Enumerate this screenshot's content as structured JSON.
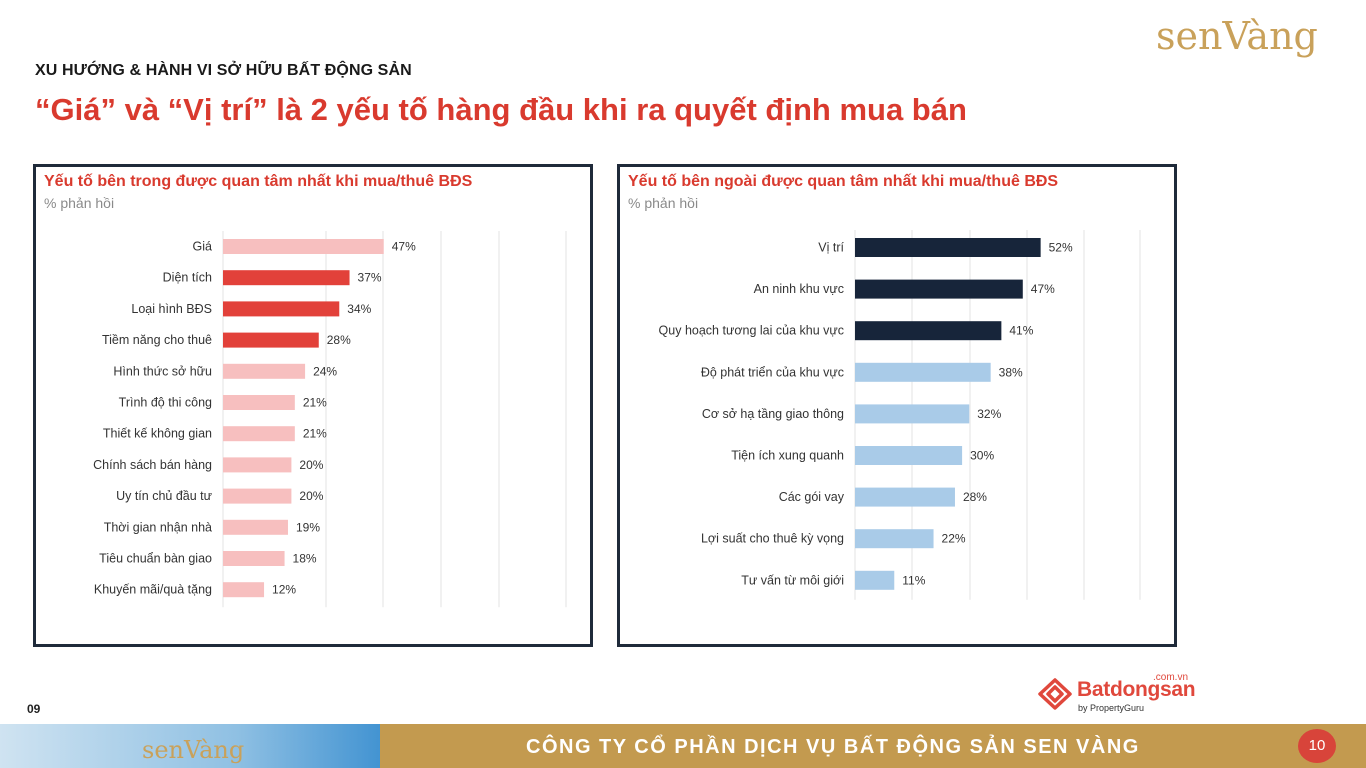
{
  "brand": {
    "logo_text": "senVàng",
    "partner_name": "Batdongsan",
    "partner_domain": ".com.vn",
    "partner_tagline": "by PropertyGuru"
  },
  "header": {
    "eyebrow": "XU HƯỚNG & HÀNH VI SỞ HỮU BẤT ĐỘNG SẢN",
    "headline": "“Giá” và “Vị trí” là 2 yếu tố hàng đầu khi ra quyết định mua bán"
  },
  "footer": {
    "slide_number_left": "09",
    "company": "CÔNG TY CỔ PHẦN DỊCH VỤ BẤT ĐỘNG SẢN SEN VÀNG",
    "page_number": "10"
  },
  "colors": {
    "accent_red": "#d93a2e",
    "bar_red": "#e2413a",
    "bar_pink": "#f7bfbf",
    "bar_navy": "#17253a",
    "bar_lightblue": "#a9cbe8",
    "gold": "#c39a4f"
  },
  "chart_data": [
    {
      "type": "bar",
      "orientation": "horizontal",
      "title": "Yếu tố bên trong được quan tâm nhất khi mua/thuê BĐS",
      "subtitle": "% phản hồi",
      "categories": [
        "Giá",
        "Diện tích",
        "Loại hình BĐS",
        "Tiềm năng cho thuê",
        "Hình thức sở hữu",
        "Trình độ thi công",
        "Thiết kế không gian",
        "Chính sách bán hàng",
        "Uy tín chủ đầu tư",
        "Thời gian nhận nhà",
        "Tiêu chuẩn bàn giao",
        "Khuyến mãi/quà tặng"
      ],
      "values": [
        47,
        37,
        34,
        28,
        24,
        21,
        21,
        20,
        20,
        19,
        18,
        12
      ],
      "value_labels": [
        "47%",
        "37%",
        "34%",
        "28%",
        "24%",
        "21%",
        "21%",
        "20%",
        "20%",
        "19%",
        "18%",
        "12%"
      ],
      "bar_colors": [
        "#f7bfbf",
        "#e2413a",
        "#e2413a",
        "#e2413a",
        "#f7bfbf",
        "#f7bfbf",
        "#f7bfbf",
        "#f7bfbf",
        "#f7bfbf",
        "#f7bfbf",
        "#f7bfbf",
        "#f7bfbf"
      ],
      "xlim": [
        0,
        100
      ],
      "grid": true
    },
    {
      "type": "bar",
      "orientation": "horizontal",
      "title": "Yếu tố bên ngoài được quan tâm nhất khi mua/thuê BĐS",
      "subtitle": "% phản hồi",
      "categories": [
        "Vị trí",
        "An ninh khu vực",
        "Quy hoạch tương lai của khu vực",
        "Độ phát triển của khu vực",
        "Cơ sở hạ tầng giao thông",
        "Tiện ích xung quanh",
        "Các gói vay",
        "Lợi suất cho thuê kỳ vọng",
        "Tư vấn từ môi giới"
      ],
      "values": [
        52,
        47,
        41,
        38,
        32,
        30,
        28,
        22,
        11
      ],
      "value_labels": [
        "52%",
        "47%",
        "41%",
        "38%",
        "32%",
        "30%",
        "28%",
        "22%",
        "11%"
      ],
      "bar_colors": [
        "#17253a",
        "#17253a",
        "#17253a",
        "#a9cbe8",
        "#a9cbe8",
        "#a9cbe8",
        "#a9cbe8",
        "#a9cbe8",
        "#a9cbe8"
      ],
      "xlim": [
        0,
        100
      ],
      "grid": true
    }
  ]
}
